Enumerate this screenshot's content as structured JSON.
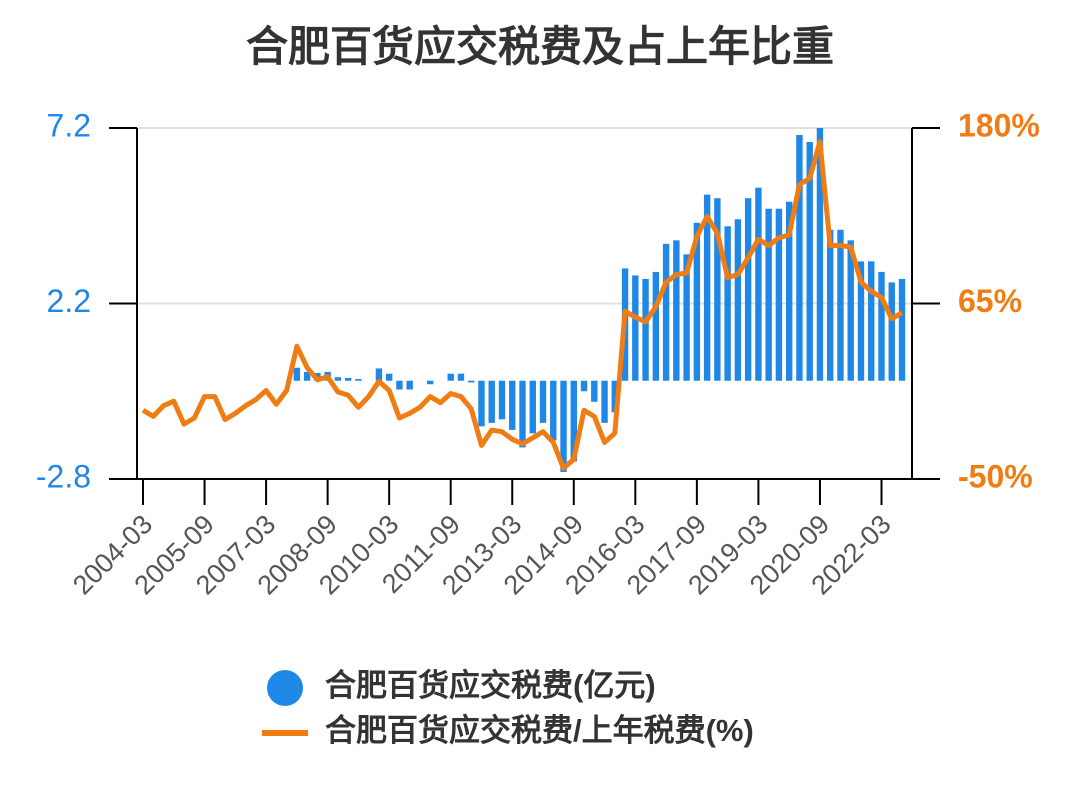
{
  "chart_data": {
    "type": "bar-line",
    "title": "合肥百货应交税费及占上年比重",
    "categories": [
      "2004-03",
      null,
      null,
      null,
      null,
      null,
      "2005-09",
      null,
      null,
      null,
      null,
      null,
      "2007-03",
      null,
      null,
      null,
      null,
      null,
      "2008-09",
      null,
      null,
      null,
      null,
      null,
      "2010-03",
      null,
      null,
      null,
      null,
      null,
      "2011-09",
      null,
      null,
      null,
      null,
      null,
      "2013-03",
      null,
      null,
      null,
      null,
      null,
      "2014-09",
      null,
      null,
      null,
      null,
      null,
      "2016-03",
      null,
      null,
      null,
      null,
      null,
      "2017-09",
      null,
      null,
      null,
      null,
      null,
      "2019-03",
      null,
      null,
      null,
      null,
      null,
      "2020-09",
      null,
      null,
      null,
      null,
      null,
      "2022-03",
      null,
      null
    ],
    "series": [
      {
        "name": "合肥百货应交税费(亿元)",
        "type": "bar",
        "axis": "y",
        "color": "#1f87e5",
        "values": [
          0,
          0,
          0,
          0,
          0,
          0,
          0,
          0,
          0,
          0,
          0,
          0,
          0,
          0,
          0,
          0.37,
          0.25,
          0.22,
          0.25,
          0.1,
          0.08,
          0.05,
          0,
          0.35,
          0.2,
          -0.25,
          -0.25,
          0,
          -0.1,
          0,
          0.2,
          0.2,
          -0.05,
          -1.3,
          -1.2,
          -1.1,
          -1.4,
          -1.9,
          -1.5,
          -1.2,
          -1.7,
          -2.6,
          -2.3,
          -0.3,
          -0.6,
          -1.2,
          -0.9,
          3.2,
          3.0,
          2.9,
          3.1,
          3.9,
          4.0,
          3.6,
          4.5,
          5.3,
          5.2,
          4.4,
          4.6,
          5.2,
          5.5,
          4.9,
          4.9,
          5.1,
          7.0,
          6.8,
          7.2,
          4.3,
          4.3,
          4.0,
          3.4,
          3.4,
          3.1,
          2.8,
          2.9
        ]
      },
      {
        "name": "合肥百货应交税费/上年税费(%)",
        "type": "line",
        "axis": "y2",
        "color": "#f07c14",
        "values": [
          -5,
          -9,
          -2,
          1,
          -14,
          -10,
          4,
          4,
          -11,
          -7,
          -2,
          2,
          8,
          -1,
          8,
          37,
          23,
          15,
          17,
          7,
          5,
          -3,
          4,
          14,
          8,
          -10,
          -7,
          -3,
          4,
          0,
          6,
          4,
          -4,
          -28,
          -18,
          -19,
          -24,
          -27,
          -23,
          -19,
          -26,
          -43,
          -37,
          -5,
          -9,
          -26,
          -20,
          60,
          56,
          53,
          63,
          79,
          84,
          85,
          109,
          122,
          111,
          82,
          84,
          95,
          107,
          103,
          108,
          110,
          143,
          147,
          171,
          103,
          103,
          102,
          79,
          73,
          69,
          55,
          59
        ]
      }
    ],
    "ylim": [
      -2.8,
      7.2
    ],
    "yticks": [
      -2.8,
      2.2,
      7.2
    ],
    "y2lim": [
      -50,
      180
    ],
    "y2ticks": [
      {
        "value": -50,
        "label": "-50%"
      },
      {
        "value": 65,
        "label": "65%"
      },
      {
        "value": 180,
        "label": "180%"
      }
    ],
    "grid": true,
    "legend": "bottom"
  }
}
